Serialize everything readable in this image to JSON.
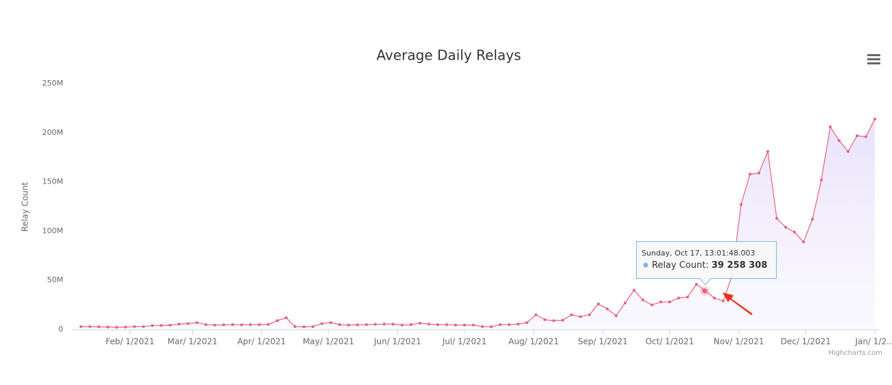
{
  "chart_data": {
    "type": "area",
    "title": "Average Daily Relays",
    "y_axis_label": "Relay Count",
    "credit": "Highcharts.com",
    "color": "#e5607f",
    "area_color": "#ece6fb",
    "x": [
      "2021-01-10",
      "2021-01-14",
      "2021-01-18",
      "2021-01-22",
      "2021-01-26",
      "2021-01-30",
      "2021-02-03",
      "2021-02-07",
      "2021-02-11",
      "2021-02-15",
      "2021-02-19",
      "2021-02-23",
      "2021-02-27",
      "2021-03-03",
      "2021-03-07",
      "2021-03-11",
      "2021-03-15",
      "2021-03-19",
      "2021-03-23",
      "2021-03-27",
      "2021-03-31",
      "2021-04-04",
      "2021-04-08",
      "2021-04-12",
      "2021-04-16",
      "2021-04-20",
      "2021-04-24",
      "2021-04-28",
      "2021-05-02",
      "2021-05-06",
      "2021-05-10",
      "2021-05-14",
      "2021-05-18",
      "2021-05-22",
      "2021-05-26",
      "2021-05-30",
      "2021-06-03",
      "2021-06-07",
      "2021-06-11",
      "2021-06-15",
      "2021-06-19",
      "2021-06-23",
      "2021-06-27",
      "2021-07-01",
      "2021-07-05",
      "2021-07-09",
      "2021-07-13",
      "2021-07-17",
      "2021-07-21",
      "2021-07-25",
      "2021-07-29",
      "2021-08-02",
      "2021-08-06",
      "2021-08-10",
      "2021-08-14",
      "2021-08-18",
      "2021-08-22",
      "2021-08-26",
      "2021-08-30",
      "2021-09-03",
      "2021-09-07",
      "2021-09-11",
      "2021-09-15",
      "2021-09-19",
      "2021-09-23",
      "2021-09-27",
      "2021-10-01",
      "2021-10-05",
      "2021-10-09",
      "2021-10-13",
      "2021-10-17",
      "2021-10-21",
      "2021-10-25",
      "2021-10-29",
      "2021-11-02",
      "2021-11-06",
      "2021-11-10",
      "2021-11-14",
      "2021-11-18",
      "2021-11-22",
      "2021-11-26",
      "2021-11-30",
      "2021-12-04",
      "2021-12-08",
      "2021-12-12",
      "2021-12-16",
      "2021-12-20",
      "2021-12-24",
      "2021-12-28",
      "2022-01-01"
    ],
    "values": [
      3000000,
      3000000,
      2800000,
      2500000,
      2300000,
      2500000,
      3000000,
      3000000,
      4000000,
      4200000,
      4500000,
      5500000,
      6000000,
      7000000,
      5000000,
      4500000,
      4800000,
      5000000,
      4800000,
      5000000,
      5000000,
      5200000,
      9000000,
      12000000,
      3000000,
      2800000,
      3000000,
      6000000,
      7000000,
      5000000,
      4500000,
      4800000,
      5000000,
      5200000,
      5500000,
      5500000,
      4500000,
      5000000,
      6500000,
      5500000,
      5000000,
      5000000,
      4500000,
      4500000,
      4500000,
      3000000,
      2800000,
      5000000,
      5000000,
      5500000,
      7000000,
      15000000,
      10000000,
      9000000,
      9500000,
      15000000,
      13000000,
      15000000,
      26000000,
      21000000,
      14000000,
      27000000,
      40000000,
      30000000,
      25000000,
      28000000,
      28000000,
      32000000,
      33000000,
      46000000,
      39258308,
      32000000,
      29000000,
      55000000,
      127000000,
      158000000,
      159000000,
      181000000,
      113000000,
      104000000,
      99000000,
      89000000,
      112000000,
      152000000,
      206000000,
      192000000,
      181000000,
      197000000,
      196000000,
      214000000
    ],
    "xlim": [
      "2021-01-06",
      "2022-01-03"
    ],
    "xticks": [
      {
        "value": "2021-02-01",
        "label": "Feb/ 1/2021"
      },
      {
        "value": "2021-03-01",
        "label": "Mar/ 1/2021"
      },
      {
        "value": "2021-04-01",
        "label": "Apr/ 1/2021"
      },
      {
        "value": "2021-05-01",
        "label": "May/ 1/2021"
      },
      {
        "value": "2021-06-01",
        "label": "Jun/ 1/2021"
      },
      {
        "value": "2021-07-01",
        "label": "Jul/ 1/2021"
      },
      {
        "value": "2021-08-01",
        "label": "Aug/ 1/2021"
      },
      {
        "value": "2021-09-01",
        "label": "Sep/ 1/2021"
      },
      {
        "value": "2021-10-01",
        "label": "Oct/ 1/2021"
      },
      {
        "value": "2021-11-01",
        "label": "Nov/ 1/2021"
      },
      {
        "value": "2021-12-01",
        "label": "Dec/ 1/2021"
      },
      {
        "value": "2022-01-01",
        "label": "Jan/ 1/2..."
      }
    ],
    "ylim": [
      0,
      250000000
    ],
    "yticks": [
      0,
      {
        "value": 50000000,
        "label": "50M"
      },
      {
        "value": 100000000,
        "label": "100M"
      },
      {
        "value": 150000000,
        "label": "150M"
      },
      {
        "value": 200000000,
        "label": "200M"
      },
      {
        "value": 250000000,
        "label": "250M"
      }
    ],
    "grid": false,
    "tooltip": {
      "header": "Sunday, Oct 17, 13:01:48.003",
      "series_label": "Relay Count:",
      "value_label": "39 258 308"
    }
  }
}
